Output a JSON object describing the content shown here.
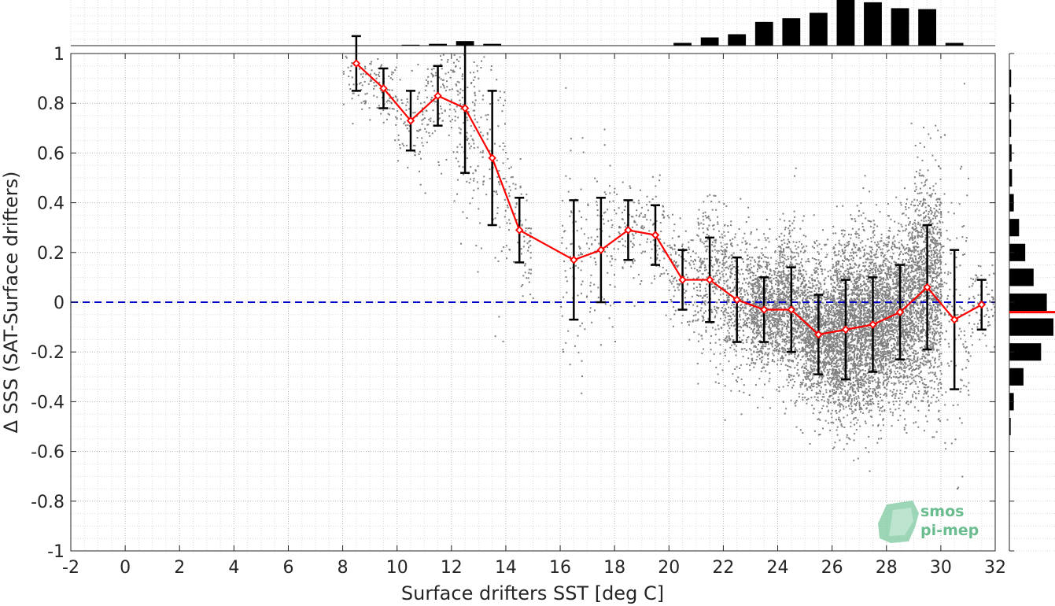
{
  "chart_data": {
    "type": "scatter",
    "title": "",
    "xlabel": "Surface drifters SST [deg C]",
    "ylabel": "Δ SSS (SAT-Surface drifters)",
    "xlim": [
      -2,
      32
    ],
    "ylim": [
      -1,
      1
    ],
    "xticks": [
      "-2",
      "0",
      "2",
      "4",
      "6",
      "8",
      "10",
      "12",
      "14",
      "16",
      "18",
      "20",
      "22",
      "24",
      "26",
      "28",
      "30",
      "32"
    ],
    "yticks": [
      "-1",
      "-0.8",
      "-0.6",
      "-0.4",
      "-0.2",
      "0",
      "0.2",
      "0.4",
      "0.6",
      "0.8",
      "1"
    ],
    "grid": true,
    "reference_line": {
      "y": 0,
      "style": "dashed",
      "color": "#0000cc"
    },
    "binned_series": {
      "x": [
        8.5,
        9.5,
        10.5,
        11.5,
        12.5,
        13.5,
        14.5,
        16.5,
        17.5,
        18.5,
        19.5,
        20.5,
        21.5,
        22.5,
        23.5,
        24.5,
        25.5,
        26.5,
        27.5,
        28.5,
        29.5,
        30.5,
        31.5
      ],
      "mean": [
        0.96,
        0.86,
        0.73,
        0.83,
        0.78,
        0.58,
        0.29,
        0.17,
        0.21,
        0.29,
        0.27,
        0.09,
        0.09,
        0.01,
        -0.03,
        -0.03,
        -0.13,
        -0.11,
        -0.09,
        -0.04,
        0.06,
        -0.07,
        -0.01
      ],
      "std": [
        0.11,
        0.08,
        0.12,
        0.12,
        0.26,
        0.27,
        0.13,
        0.24,
        0.21,
        0.12,
        0.12,
        0.12,
        0.17,
        0.17,
        0.13,
        0.17,
        0.16,
        0.2,
        0.19,
        0.19,
        0.25,
        0.28,
        0.1
      ],
      "color": "#ff0000",
      "errorbar_color": "#000000"
    },
    "scatter_color": "#808080",
    "top_histogram": {
      "x": [
        10.5,
        11.5,
        12.5,
        13.5,
        20.5,
        21.5,
        22.5,
        23.5,
        24.5,
        25.5,
        26.5,
        27.5,
        28.5,
        29.5,
        30.5
      ],
      "relative_height": [
        0.02,
        0.04,
        0.1,
        0.04,
        0.06,
        0.18,
        0.25,
        0.52,
        0.6,
        0.72,
        1.0,
        0.95,
        0.82,
        0.8,
        0.06
      ],
      "color": "#000000"
    },
    "right_histogram": {
      "y": [
        0.9,
        0.8,
        0.7,
        0.6,
        0.5,
        0.4,
        0.3,
        0.2,
        0.1,
        0.0,
        -0.1,
        -0.2,
        -0.3,
        -0.4,
        -0.5
      ],
      "relative_width": [
        0.04,
        0.04,
        0.04,
        0.05,
        0.06,
        0.1,
        0.22,
        0.36,
        0.55,
        0.85,
        1.0,
        0.72,
        0.32,
        0.1,
        0.03
      ],
      "mean_line_color": "#ff0000",
      "mean_line_y": -0.04
    }
  },
  "watermark": {
    "line1": "smos",
    "line2": "pi-mep",
    "color": "#3aa86b"
  }
}
